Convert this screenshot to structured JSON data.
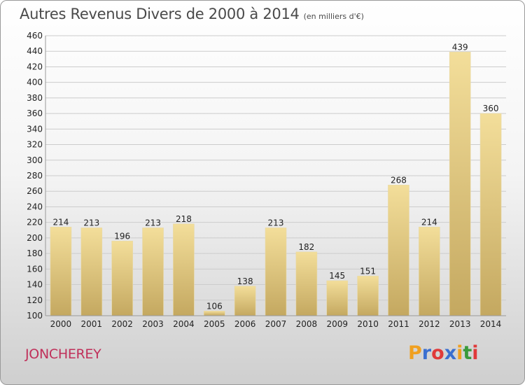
{
  "header": {
    "title": "Autres Revenus Divers de 2000 à 2014",
    "subtitle": "(en milliers d'€)"
  },
  "footer": {
    "commune": "JONCHEREY",
    "logo_text": "Proxiti",
    "logo_colors": [
      "#f0a020",
      "#3a6fd0",
      "#e03a3a",
      "#3a6fd0",
      "#f0a020",
      "#3a9a3a",
      "#e03a3a"
    ]
  },
  "colors": {
    "bar_top": "#f3de9a",
    "bar_bottom": "#c4a860",
    "grid": "#cccccc",
    "commune": "#c0305a"
  },
  "chart_data": {
    "type": "bar",
    "title": "Autres Revenus Divers de 2000 à 2014",
    "subtitle": "(en milliers d'€)",
    "categories": [
      "2000",
      "2001",
      "2002",
      "2003",
      "2004",
      "2005",
      "2006",
      "2007",
      "2008",
      "2009",
      "2010",
      "2011",
      "2012",
      "2013",
      "2014"
    ],
    "values": [
      214,
      213,
      196,
      213,
      218,
      106,
      138,
      213,
      182,
      145,
      151,
      268,
      214,
      439,
      360
    ],
    "ylim": [
      100,
      460
    ],
    "yticks": [
      100,
      120,
      140,
      160,
      180,
      200,
      220,
      240,
      260,
      280,
      300,
      320,
      340,
      360,
      380,
      400,
      420,
      440,
      460
    ],
    "grid": true,
    "xlabel": "",
    "ylabel": ""
  }
}
